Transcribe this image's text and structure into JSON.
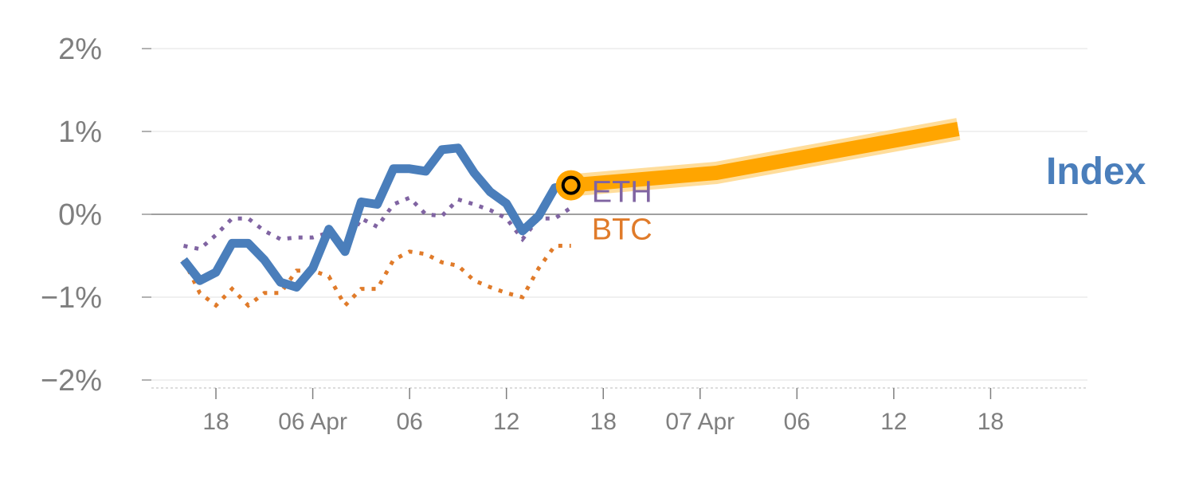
{
  "chart_data": {
    "type": "line",
    "x_units": "hourly index (t = 0 is the first plotted point)",
    "xlim": [
      -2,
      56
    ],
    "ylim": [
      -2.1,
      2.1
    ],
    "y_ticks": [
      {
        "value": 2,
        "label": "2%"
      },
      {
        "value": 1,
        "label": "1%"
      },
      {
        "value": 0,
        "label": "0%"
      },
      {
        "value": -1,
        "label": "−1%"
      },
      {
        "value": -2,
        "label": "−2%"
      }
    ],
    "x_ticks": [
      {
        "value": 2,
        "label": "18"
      },
      {
        "value": 8,
        "label": "06 Apr"
      },
      {
        "value": 14,
        "label": "06"
      },
      {
        "value": 20,
        "label": "12"
      },
      {
        "value": 26,
        "label": "18"
      },
      {
        "value": 32,
        "label": "07 Apr"
      },
      {
        "value": 38,
        "label": "06"
      },
      {
        "value": 44,
        "label": "12"
      },
      {
        "value": 50,
        "label": "18"
      }
    ],
    "grid": true,
    "series": [
      {
        "name": "Index",
        "color": "#4a7ebb",
        "style": "solid",
        "x": [
          0,
          1,
          2,
          3,
          4,
          5,
          6,
          7,
          8,
          9,
          10,
          11,
          12,
          13,
          14,
          15,
          16,
          17,
          18,
          19,
          20,
          21,
          22,
          23,
          24
        ],
        "y": [
          -0.55,
          -0.8,
          -0.7,
          -0.35,
          -0.35,
          -0.55,
          -0.82,
          -0.88,
          -0.65,
          -0.18,
          -0.45,
          0.15,
          0.12,
          0.55,
          0.55,
          0.52,
          0.78,
          0.8,
          0.5,
          0.27,
          0.13,
          -0.2,
          -0.02,
          0.32,
          0.35
        ]
      },
      {
        "name": "ETH",
        "color": "#8064a2",
        "style": "dotted",
        "x": [
          0,
          1,
          2,
          3,
          4,
          5,
          6,
          7,
          8,
          9,
          10,
          11,
          12,
          13,
          14,
          15,
          16,
          17,
          18,
          19,
          20,
          21,
          22,
          23,
          24
        ],
        "y": [
          -0.38,
          -0.42,
          -0.25,
          -0.05,
          -0.05,
          -0.2,
          -0.3,
          -0.28,
          -0.28,
          -0.22,
          -0.4,
          -0.05,
          -0.15,
          0.12,
          0.2,
          0.0,
          -0.02,
          0.18,
          0.12,
          0.05,
          -0.05,
          -0.3,
          -0.05,
          -0.05,
          0.08
        ]
      },
      {
        "name": "BTC",
        "color": "#e07b2a",
        "style": "dotted",
        "x": [
          0,
          1,
          2,
          3,
          4,
          5,
          6,
          7,
          8,
          9,
          10,
          11,
          12,
          13,
          14,
          15,
          16,
          17,
          18,
          19,
          20,
          21,
          22,
          23,
          24
        ],
        "y": [
          -0.55,
          -0.95,
          -1.1,
          -0.9,
          -1.1,
          -0.95,
          -0.95,
          -0.68,
          -0.68,
          -0.75,
          -1.1,
          -0.9,
          -0.9,
          -0.55,
          -0.45,
          -0.48,
          -0.58,
          -0.62,
          -0.8,
          -0.88,
          -0.95,
          -1.0,
          -0.65,
          -0.38,
          -0.38
        ]
      },
      {
        "name": "Index forecast",
        "color": "#ffa500",
        "style": "thick",
        "x": [
          24,
          33,
          48
        ],
        "y": [
          0.35,
          0.5,
          1.03
        ]
      }
    ],
    "series_labels": {
      "index": "Index",
      "eth": "ETH",
      "btc": "BTC"
    },
    "marker": {
      "x": 24,
      "y": 0.35,
      "fill": "#ffa500",
      "stroke": "#000000"
    }
  }
}
